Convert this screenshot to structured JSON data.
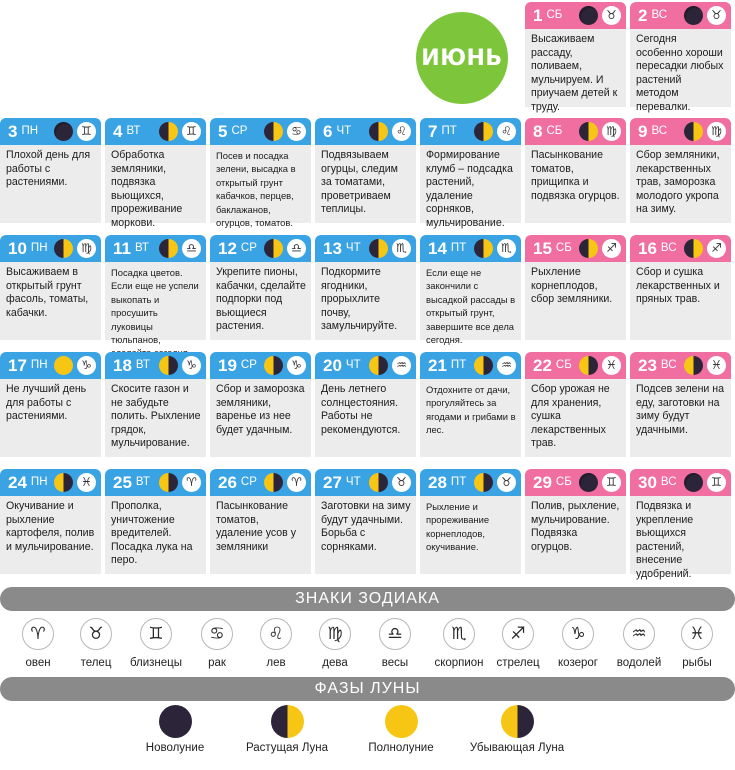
{
  "month": "ИЮНЬ",
  "days": [
    {
      "num": "1",
      "dow": "СБ",
      "weekend": true,
      "moon": "new",
      "zodiac": "♉",
      "text": "Высаживаем рассаду, поливаем, мульчируем. И приучаем детей к труду."
    },
    {
      "num": "2",
      "dow": "ВС",
      "weekend": true,
      "moon": "new",
      "zodiac": "♉",
      "text": "Сегодня особенно хороши пересадки любых растений методом перевалки."
    },
    {
      "num": "3",
      "dow": "ПН",
      "weekend": false,
      "moon": "new",
      "zodiac": "♊",
      "text": "Плохой день для работы с растениями."
    },
    {
      "num": "4",
      "dow": "ВТ",
      "weekend": false,
      "moon": "waxing",
      "zodiac": "♊",
      "text": "Обработка земляники, подвязка вьющихся, прореживание моркови."
    },
    {
      "num": "5",
      "dow": "СР",
      "weekend": false,
      "moon": "waxing",
      "zodiac": "♋",
      "text": "Посев и посадка зелени, высадка в открытый грунт кабачков, перцев, баклажанов, огурцов, томатов."
    },
    {
      "num": "6",
      "dow": "ЧТ",
      "weekend": false,
      "moon": "waxing",
      "zodiac": "♌",
      "text": "Подвязываем огурцы, следим за томатами, проветриваем теплицы."
    },
    {
      "num": "7",
      "dow": "ПТ",
      "weekend": false,
      "moon": "waxing",
      "zodiac": "♌",
      "text": "Формирование клумб – подсадка растений, удаление сорняков, мульчирование."
    },
    {
      "num": "8",
      "dow": "СБ",
      "weekend": true,
      "moon": "waxing",
      "zodiac": "♍",
      "text": "Пасынкование томатов, прищипка и подвязка огурцов."
    },
    {
      "num": "9",
      "dow": "ВС",
      "weekend": true,
      "moon": "waxing",
      "zodiac": "♍",
      "text": "Сбор земляники, лекарственных трав, заморозка молодого укропа на зиму."
    },
    {
      "num": "10",
      "dow": "ПН",
      "weekend": false,
      "moon": "waxing",
      "zodiac": "♍",
      "text": "Высаживаем в открытый грунт фасоль, томаты, кабачки."
    },
    {
      "num": "11",
      "dow": "ВТ",
      "weekend": false,
      "moon": "waxing",
      "zodiac": "♎",
      "text": "Посадка цветов. Если еще не успели выкопать и просушить луковицы тюльпанов, сделайте сегодня."
    },
    {
      "num": "12",
      "dow": "СР",
      "weekend": false,
      "moon": "waxing",
      "zodiac": "♎",
      "text": "Укрепите пионы, кабачки, сделайте подпорки под вьющиеся растения."
    },
    {
      "num": "13",
      "dow": "ЧТ",
      "weekend": false,
      "moon": "waxing",
      "zodiac": "♏",
      "text": "Подкормите ягодники, прорыхлите почву, замульчируйте."
    },
    {
      "num": "14",
      "dow": "ПТ",
      "weekend": false,
      "moon": "waxing",
      "zodiac": "♏",
      "text": "Если еще не закончили с высадкой рассады в открытый грунт, завершите все дела сегодня."
    },
    {
      "num": "15",
      "dow": "СБ",
      "weekend": true,
      "moon": "waxing",
      "zodiac": "♐",
      "text": "Рыхление корнеплодов, сбор земляники."
    },
    {
      "num": "16",
      "dow": "ВС",
      "weekend": true,
      "moon": "waxing",
      "zodiac": "♐",
      "text": "Сбор и сушка лекарственных и пряных трав."
    },
    {
      "num": "17",
      "dow": "ПН",
      "weekend": false,
      "moon": "full",
      "zodiac": "♑",
      "text": "Не лучший день для работы с растениями."
    },
    {
      "num": "18",
      "dow": "ВТ",
      "weekend": false,
      "moon": "waning",
      "zodiac": "♑",
      "text": "Скосите газон и не забудьте полить. Рыхление грядок, мульчирование."
    },
    {
      "num": "19",
      "dow": "СР",
      "weekend": false,
      "moon": "waning",
      "zodiac": "♑",
      "text": "Сбор и заморозка земляники, варенье из нее будет удачным."
    },
    {
      "num": "20",
      "dow": "ЧТ",
      "weekend": false,
      "moon": "waning",
      "zodiac": "♒",
      "text": "День летнего солнцестояния. Работы не рекомендуются."
    },
    {
      "num": "21",
      "dow": "ПТ",
      "weekend": false,
      "moon": "waning",
      "zodiac": "♒",
      "text": "Отдохните от дачи, прогуляйтесь за ягодами и грибами в лес."
    },
    {
      "num": "22",
      "dow": "СБ",
      "weekend": true,
      "moon": "waning",
      "zodiac": "♓",
      "text": "Сбор урожая не для хранения, сушка лекарственных трав."
    },
    {
      "num": "23",
      "dow": "ВС",
      "weekend": true,
      "moon": "waning",
      "zodiac": "♓",
      "text": "Подсев зелени на еду, заготовки на зиму будут удачными."
    },
    {
      "num": "24",
      "dow": "ПН",
      "weekend": false,
      "moon": "waning",
      "zodiac": "♓",
      "text": "Окучивание и рыхление картофеля, полив и мульчирование."
    },
    {
      "num": "25",
      "dow": "ВТ",
      "weekend": false,
      "moon": "waning",
      "zodiac": "♈",
      "text": "Прополка, уничтожение вредителей. Посадка лука на перо."
    },
    {
      "num": "26",
      "dow": "СР",
      "weekend": false,
      "moon": "waning",
      "zodiac": "♈",
      "text": "Пасынкование томатов, удаление усов у земляники"
    },
    {
      "num": "27",
      "dow": "ЧТ",
      "weekend": false,
      "moon": "waning",
      "zodiac": "♉",
      "text": "Заготовки на зиму будут удачными. Борьба с сорняками."
    },
    {
      "num": "28",
      "dow": "ПТ",
      "weekend": false,
      "moon": "waning",
      "zodiac": "♉",
      "text": "Рыхление и прореживание корнеплодов, окучивание."
    },
    {
      "num": "29",
      "dow": "СБ",
      "weekend": true,
      "moon": "new",
      "zodiac": "♊",
      "text": "Полив, рыхление, мульчирование. Подвязка огурцов."
    },
    {
      "num": "30",
      "dow": "ВС",
      "weekend": true,
      "moon": "new",
      "zodiac": "♊",
      "text": "Подвязка и укрепление вьющихся растений, внесение удобрений."
    }
  ],
  "zodiac_title": "ЗНАКИ ЗОДИАКА",
  "zodiac_signs": [
    {
      "symbol": "♈",
      "label": "овен"
    },
    {
      "symbol": "♉",
      "label": "телец"
    },
    {
      "symbol": "♊",
      "label": "близнецы"
    },
    {
      "symbol": "♋",
      "label": "рак"
    },
    {
      "symbol": "♌",
      "label": "лев"
    },
    {
      "symbol": "♍",
      "label": "дева"
    },
    {
      "symbol": "♎",
      "label": "весы"
    },
    {
      "symbol": "♏",
      "label": "скорпион"
    },
    {
      "symbol": "♐",
      "label": "стрелец"
    },
    {
      "symbol": "♑",
      "label": "козерог"
    },
    {
      "symbol": "♒",
      "label": "водолей"
    },
    {
      "symbol": "♓",
      "label": "рыбы"
    }
  ],
  "phases_title": "ФАЗЫ ЛУНЫ",
  "moon_phases": [
    {
      "type": "new",
      "label": "Новолуние"
    },
    {
      "type": "waxing",
      "label": "Растущая Луна"
    },
    {
      "type": "full",
      "label": "Полнолуние"
    },
    {
      "type": "waning",
      "label": "Убывающая Луна"
    }
  ],
  "colors": {
    "weekday": "#3aa3e3",
    "weekend": "#f06ea0",
    "month_circle": "#7dc63b",
    "bar": "#8a8a8a",
    "moon_dark": "#2c2438",
    "moon_light": "#f7c615"
  }
}
